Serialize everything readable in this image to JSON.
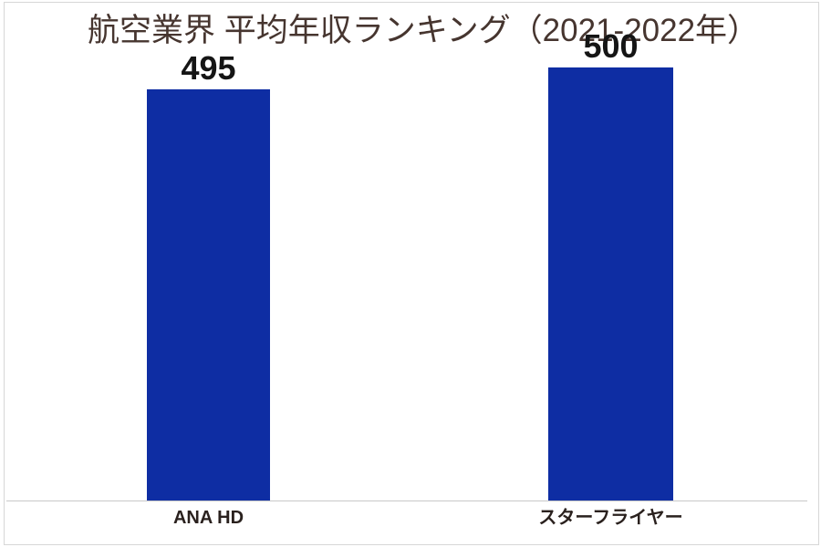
{
  "chart_data": {
    "type": "bar",
    "title": "航空業界 平均年収ランキング（2021-2022年）",
    "categories": [
      "ANA HD",
      "スターフライヤー"
    ],
    "values": [
      495,
      500
    ],
    "xlabel": "",
    "ylabel": "",
    "ylim": [
      400,
      510
    ],
    "gridlines": false,
    "legend_position": "none",
    "value_axis_visible": false,
    "data_labels_visible": true,
    "bar_color": "#0e2da3",
    "axis_line_color": "#c8c8c8",
    "title_color": "#46352f",
    "data_label_color": "#151515",
    "category_label_color": "#2a211e",
    "frame_border_color": "#d7d7d7",
    "background_color": "#ffffff"
  }
}
